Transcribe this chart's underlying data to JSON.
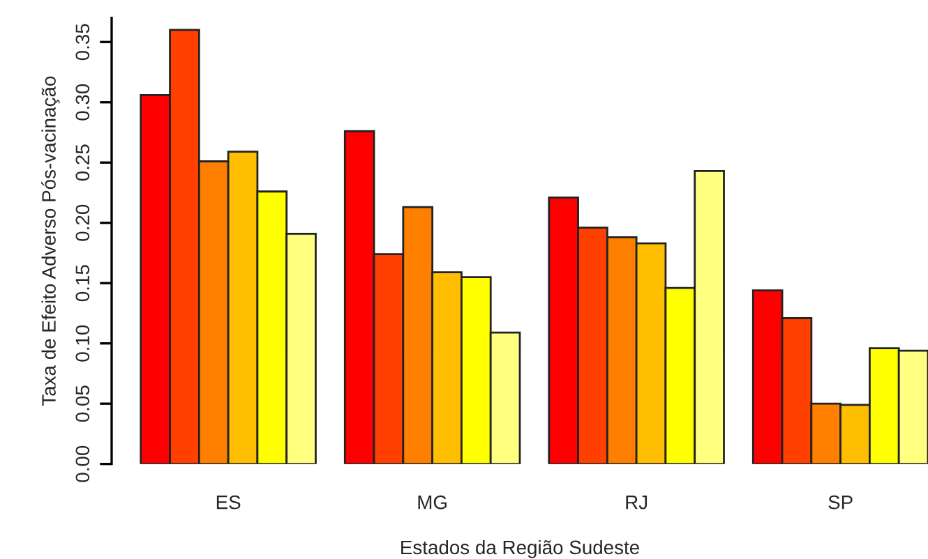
{
  "chart_data": {
    "type": "bar",
    "xlabel": "Estados da Região Sudeste",
    "ylabel": "Taxa de Efeito Adverso Pós-vacinação",
    "categories": [
      "ES",
      "MG",
      "RJ",
      "SP"
    ],
    "series": [
      {
        "color": "#ff0000",
        "values": [
          0.306,
          0.276,
          0.221,
          0.144
        ]
      },
      {
        "color": "#ff4000",
        "values": [
          0.36,
          0.174,
          0.196,
          0.121
        ]
      },
      {
        "color": "#ff8000",
        "values": [
          0.251,
          0.213,
          0.188,
          0.05
        ]
      },
      {
        "color": "#ffbf00",
        "values": [
          0.259,
          0.159,
          0.183,
          0.049
        ]
      },
      {
        "color": "#ffff00",
        "values": [
          0.226,
          0.155,
          0.146,
          0.096
        ]
      },
      {
        "color": "#ffff80",
        "values": [
          0.191,
          0.109,
          0.243,
          0.094
        ]
      }
    ],
    "ylim": [
      0,
      0.37
    ],
    "yticks": [
      {
        "value": 0,
        "label": "0.00"
      },
      {
        "value": 0.05,
        "label": "0.05"
      },
      {
        "value": 0.1,
        "label": "0.10"
      },
      {
        "value": 0.15,
        "label": "0.15"
      },
      {
        "value": 0.2,
        "label": "0.20"
      },
      {
        "value": 0.25,
        "label": "0.25"
      },
      {
        "value": 0.3,
        "label": "0.30"
      },
      {
        "value": 0.35,
        "label": "0.35"
      }
    ],
    "grid": false
  }
}
